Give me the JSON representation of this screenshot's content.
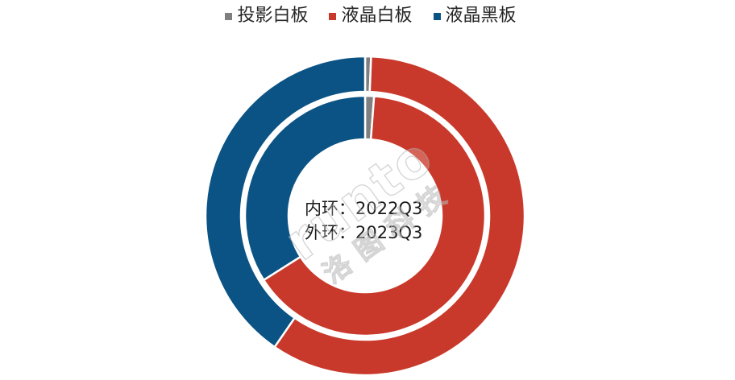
{
  "legend": {
    "placement": "top"
  },
  "center_text": {
    "separator": "："
  },
  "watermark": {
    "latin": "runto",
    "cjk": "洛图科技"
  },
  "chart_data": {
    "type": "donut",
    "categories": [
      "投影白板",
      "液晶白板",
      "液晶黑板"
    ],
    "colors": [
      "#7f7f7f",
      "#c9392b",
      "#0b5384"
    ],
    "rings": [
      {
        "ring": "内环",
        "series": "2022Q3",
        "values": [
          1.2,
          64.8,
          34.0
        ]
      },
      {
        "ring": "外环",
        "series": "2023Q3",
        "values": [
          0.6,
          59.0,
          40.4
        ]
      }
    ],
    "title": ""
  }
}
